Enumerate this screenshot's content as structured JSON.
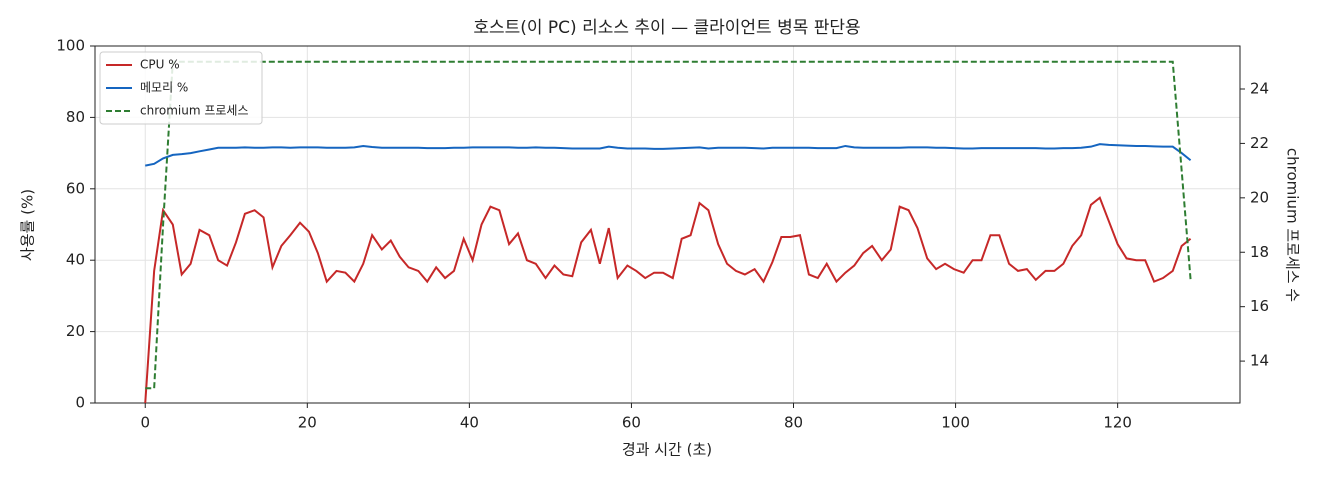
{
  "chart_data": {
    "type": "line",
    "title": "호스트(이 PC) 리소스 추이 — 클라이언트 병목 판단용",
    "xlabel": "경과 시간 (초)",
    "ylabel": "사용률 (%)",
    "y2label": "chromium 프로세스 수",
    "x": [
      0,
      1.1,
      2.2,
      3.4,
      4.5,
      5.6,
      6.7,
      7.9,
      9.0,
      10.1,
      11.2,
      12.3,
      13.5,
      14.6,
      15.7,
      16.8,
      17.9,
      19.1,
      20.2,
      21.3,
      22.4,
      23.6,
      24.7,
      25.8,
      26.9,
      28.0,
      29.2,
      30.3,
      31.4,
      32.5,
      33.7,
      34.8,
      35.9,
      37.0,
      38.1,
      39.3,
      40.4,
      41.5,
      42.6,
      43.7,
      44.9,
      46.0,
      47.1,
      48.2,
      49.4,
      50.5,
      51.6,
      52.7,
      53.8,
      55.0,
      56.1,
      57.2,
      58.3,
      59.5,
      60.6,
      61.7,
      62.8,
      63.9,
      65.1,
      66.2,
      67.3,
      68.4,
      69.5,
      70.7,
      71.8,
      72.9,
      74.0,
      75.2,
      76.3,
      77.4,
      78.5,
      79.6,
      80.8,
      81.9,
      83.0,
      84.1,
      85.3,
      86.4,
      87.5,
      88.6,
      89.7,
      90.9,
      92.0,
      93.1,
      94.2,
      95.3,
      96.5,
      97.6,
      98.7,
      99.8,
      101.0,
      102.1,
      103.2,
      104.3,
      105.4,
      106.6,
      107.7,
      108.8,
      109.9,
      111.1,
      112.2,
      113.3,
      114.4,
      115.5,
      116.7,
      117.8,
      118.9,
      120.0,
      121.1,
      122.3,
      123.4,
      124.5,
      125.6,
      126.8,
      127.9,
      129.0
    ],
    "series": [
      {
        "name": "CPU %",
        "color": "#c62828",
        "dashed": false,
        "values": [
          0,
          37,
          54,
          50,
          36,
          39,
          48.5,
          47,
          40,
          38.5,
          45,
          53,
          54,
          52,
          38,
          44,
          47,
          50.5,
          48,
          42,
          34,
          37,
          36.5,
          34,
          39,
          47,
          43,
          45.5,
          41,
          38,
          37,
          34,
          38,
          35,
          37,
          46,
          40,
          50,
          55,
          54,
          44.5,
          47.5,
          40,
          39,
          35,
          38.5,
          36,
          35.5,
          45,
          48.5,
          39,
          49,
          35,
          38.5,
          37,
          35,
          36.5,
          36.5,
          35,
          46,
          47,
          56,
          54,
          44.5,
          39,
          37,
          36,
          37.5,
          34,
          39.5,
          46.5,
          46.5,
          47,
          36,
          35,
          39,
          34,
          36.5,
          38.5,
          42,
          44,
          40,
          43,
          55,
          54,
          49,
          40.5,
          37.5,
          39,
          37.5,
          36.5,
          40,
          40,
          47,
          47,
          39,
          37,
          37.5,
          34.5,
          37,
          37,
          39,
          44,
          47,
          55.5,
          57.5,
          51,
          44.5,
          40.5,
          40,
          40,
          34,
          35,
          37,
          44,
          46
        ]
      },
      {
        "name": "메모리 %",
        "color": "#1565c0",
        "dashed": false,
        "values": [
          66.5,
          67,
          68.5,
          69.5,
          69.7,
          70,
          70.5,
          71,
          71.5,
          71.5,
          71.5,
          71.6,
          71.5,
          71.5,
          71.6,
          71.6,
          71.5,
          71.6,
          71.6,
          71.6,
          71.5,
          71.5,
          71.5,
          71.6,
          72,
          71.7,
          71.5,
          71.5,
          71.5,
          71.5,
          71.5,
          71.4,
          71.4,
          71.4,
          71.5,
          71.5,
          71.6,
          71.6,
          71.6,
          71.6,
          71.6,
          71.5,
          71.5,
          71.6,
          71.5,
          71.5,
          71.4,
          71.3,
          71.3,
          71.3,
          71.3,
          71.8,
          71.5,
          71.3,
          71.3,
          71.3,
          71.2,
          71.2,
          71.3,
          71.4,
          71.5,
          71.6,
          71.3,
          71.5,
          71.5,
          71.5,
          71.5,
          71.4,
          71.3,
          71.5,
          71.5,
          71.5,
          71.5,
          71.5,
          71.4,
          71.4,
          71.4,
          72,
          71.6,
          71.5,
          71.5,
          71.5,
          71.5,
          71.5,
          71.6,
          71.6,
          71.6,
          71.5,
          71.5,
          71.4,
          71.3,
          71.3,
          71.4,
          71.4,
          71.4,
          71.4,
          71.4,
          71.4,
          71.4,
          71.3,
          71.3,
          71.4,
          71.4,
          71.5,
          71.8,
          72.5,
          72.3,
          72.2,
          72.1,
          72,
          72,
          71.9,
          71.8,
          71.8,
          70,
          68
        ]
      },
      {
        "name": "chromium 프로세스",
        "color": "#2e7d32",
        "dashed": true,
        "axis": "y2",
        "values": [
          13,
          13,
          19,
          25,
          25,
          25,
          25,
          25,
          25,
          25,
          25,
          25,
          25,
          25,
          25,
          25,
          25,
          25,
          25,
          25,
          25,
          25,
          25,
          25,
          25,
          25,
          25,
          25,
          25,
          25,
          25,
          25,
          25,
          25,
          25,
          25,
          25,
          25,
          25,
          25,
          25,
          25,
          25,
          25,
          25,
          25,
          25,
          25,
          25,
          25,
          25,
          25,
          25,
          25,
          25,
          25,
          25,
          25,
          25,
          25,
          25,
          25,
          25,
          25,
          25,
          25,
          25,
          25,
          25,
          25,
          25,
          25,
          25,
          25,
          25,
          25,
          25,
          25,
          25,
          25,
          25,
          25,
          25,
          25,
          25,
          25,
          25,
          25,
          25,
          25,
          25,
          25,
          25,
          25,
          25,
          25,
          25,
          25,
          25,
          25,
          25,
          25,
          25,
          25,
          25,
          25,
          25,
          25,
          25,
          25,
          25,
          25,
          25,
          25,
          21,
          17
        ]
      }
    ],
    "xlim": [
      -6.2,
      135.1
    ],
    "xticks": [
      0,
      20,
      40,
      60,
      80,
      100,
      120
    ],
    "ylim": [
      0,
      100
    ],
    "yticks": [
      0,
      20,
      40,
      60,
      80,
      100
    ],
    "y2lim": [
      12.46,
      25.58
    ],
    "y2ticks": [
      14,
      16,
      18,
      20,
      22,
      24
    ],
    "grid": true,
    "legend": "upper left"
  }
}
